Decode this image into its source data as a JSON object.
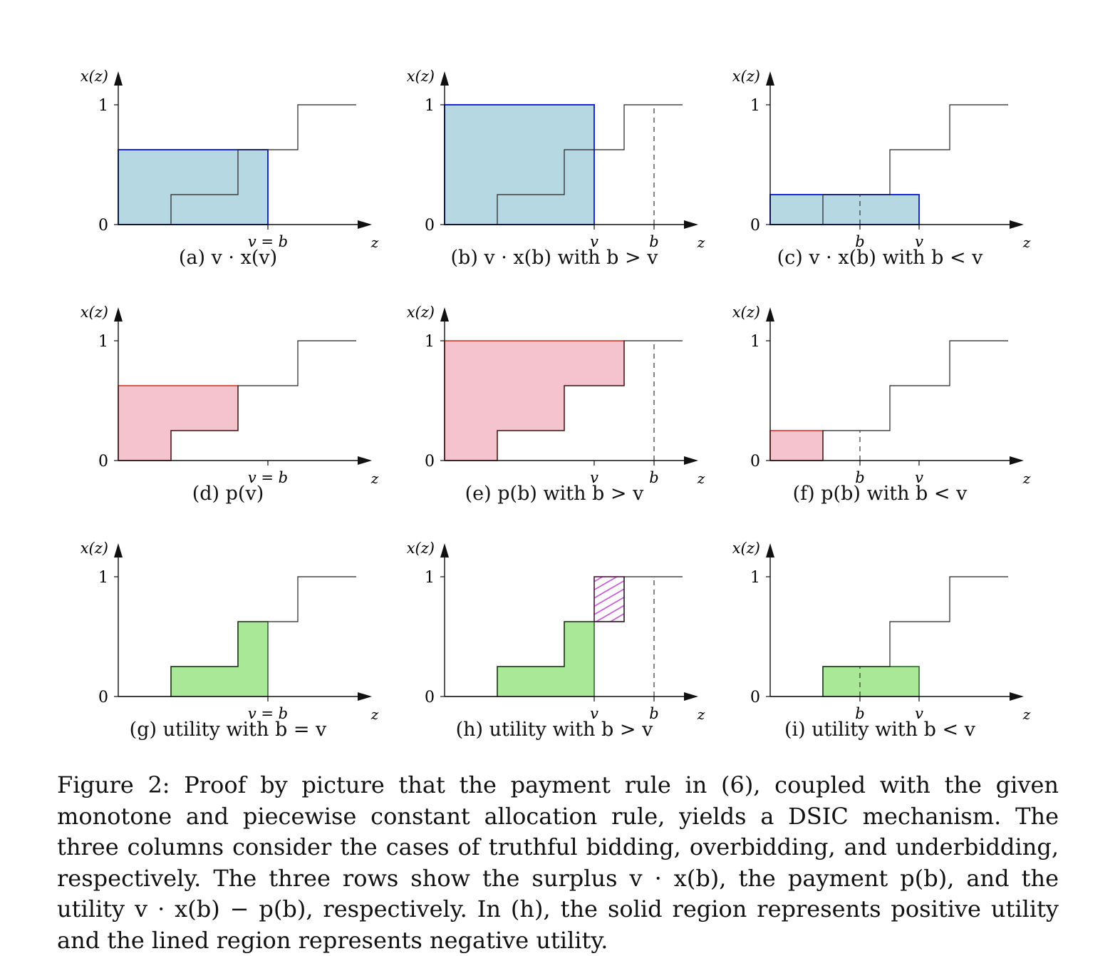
{
  "panels": [
    {
      "id": "a",
      "caption": "(a) v · x(v)",
      "xlabels": [
        "v = b"
      ],
      "shade": "surplus",
      "col": "truthful"
    },
    {
      "id": "b",
      "caption": "(b) v · x(b) with b > v",
      "xlabels": [
        "v",
        "b"
      ],
      "shade": "surplus",
      "col": "over"
    },
    {
      "id": "c",
      "caption": "(c) v · x(b) with b < v",
      "xlabels": [
        "b",
        "v"
      ],
      "shade": "surplus",
      "col": "under"
    },
    {
      "id": "d",
      "caption": "(d) p(v)",
      "xlabels": [
        "v = b"
      ],
      "shade": "payment",
      "col": "truthful"
    },
    {
      "id": "e",
      "caption": "(e) p(b) with b > v",
      "xlabels": [
        "v",
        "b"
      ],
      "shade": "payment",
      "col": "over"
    },
    {
      "id": "f",
      "caption": "(f) p(b) with b < v",
      "xlabels": [
        "b",
        "v"
      ],
      "shade": "payment",
      "col": "under"
    },
    {
      "id": "g",
      "caption": "(g) utility with b = v",
      "xlabels": [
        "v = b"
      ],
      "shade": "utility",
      "col": "truthful"
    },
    {
      "id": "h",
      "caption": "(h) utility with b > v",
      "xlabels": [
        "v",
        "b"
      ],
      "shade": "utility",
      "col": "over"
    },
    {
      "id": "i",
      "caption": "(i) utility with b < v",
      "xlabels": [
        "b",
        "v"
      ],
      "shade": "utility",
      "col": "under"
    }
  ],
  "axis": {
    "ylabel": "x(z)",
    "xlabel": "z",
    "yticks": [
      "0",
      "1"
    ]
  },
  "colors": {
    "surplus_fill": "#b5d8e2",
    "surplus_edge": "#1a2bd6",
    "payment_fill": "#f4c3cd",
    "payment_edge": "#d62a1f",
    "utility_fill": "#a8e896",
    "utility_edge": "#2e6b2e",
    "negative_hatch": "#c04fd0",
    "curve": "#222222"
  },
  "figure_caption": "Figure 2: Proof by picture that the payment rule in (6), coupled with the given monotone and piecewise constant allocation rule, yields a DSIC mechanism. The three columns consider the cases of truthful bidding, overbidding, and underbidding, respectively. The three rows show the surplus v · x(b), the payment p(b), and the utility v · x(b) − p(b), respectively. In (h), the solid region represents positive utility and the lined region represents negative utility."
}
